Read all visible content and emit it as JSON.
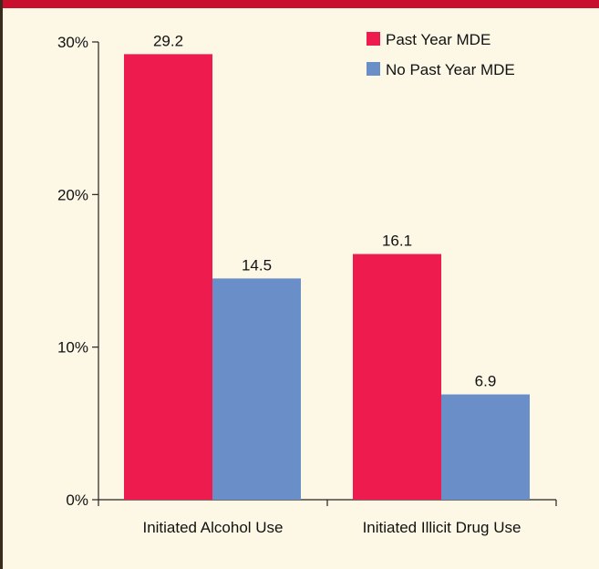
{
  "chart_data": {
    "type": "bar",
    "categories": [
      "Initiated Alcohol Use",
      "Initiated Illicit Drug Use"
    ],
    "series": [
      {
        "name": "Past Year MDE",
        "values": [
          29.2,
          16.1
        ],
        "color": "#ee1b4f"
      },
      {
        "name": "No Past Year MDE",
        "values": [
          14.5,
          6.9
        ],
        "color": "#6a8ec8"
      }
    ],
    "data_labels": [
      [
        "29.2",
        "16.1"
      ],
      [
        "14.5",
        "6.9"
      ]
    ],
    "ylim": [
      0,
      30
    ],
    "yticks": [
      0,
      10,
      20,
      30
    ],
    "ytick_labels": [
      "0%",
      "10%",
      "20%",
      "30%"
    ],
    "legend_position": "top-right",
    "grid": false
  },
  "colors": {
    "background": "#fdf8e6",
    "top_border": "#c8102e",
    "left_border": "#3a2a1a",
    "axis": "#222222"
  }
}
